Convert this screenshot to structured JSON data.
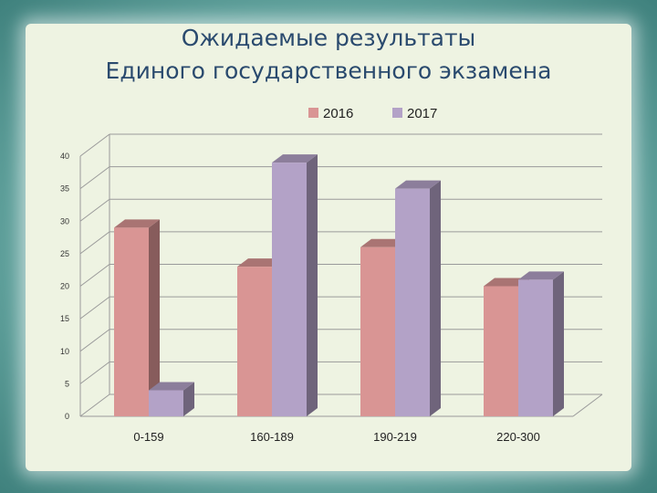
{
  "slide": {
    "title_line1": "Ожидаемые результаты",
    "title_line2": "Единого государственного экзамена"
  },
  "chart_data": {
    "type": "bar",
    "title": "Ожидаемые результаты Единого государственного экзамена",
    "categories": [
      "0-159",
      "160-189",
      "190-219",
      "220-300"
    ],
    "series": [
      {
        "name": "2016",
        "values": [
          29,
          23,
          26,
          20
        ],
        "color": "#d99594"
      },
      {
        "name": "2017",
        "values": [
          4,
          39,
          35,
          21
        ],
        "color": "#b3a2c7"
      }
    ],
    "ylim": [
      0,
      40
    ],
    "yticks": [
      0,
      5,
      10,
      15,
      20,
      25,
      30,
      35,
      40
    ],
    "grid": true,
    "legend_position": "top",
    "style": "3d-column"
  }
}
